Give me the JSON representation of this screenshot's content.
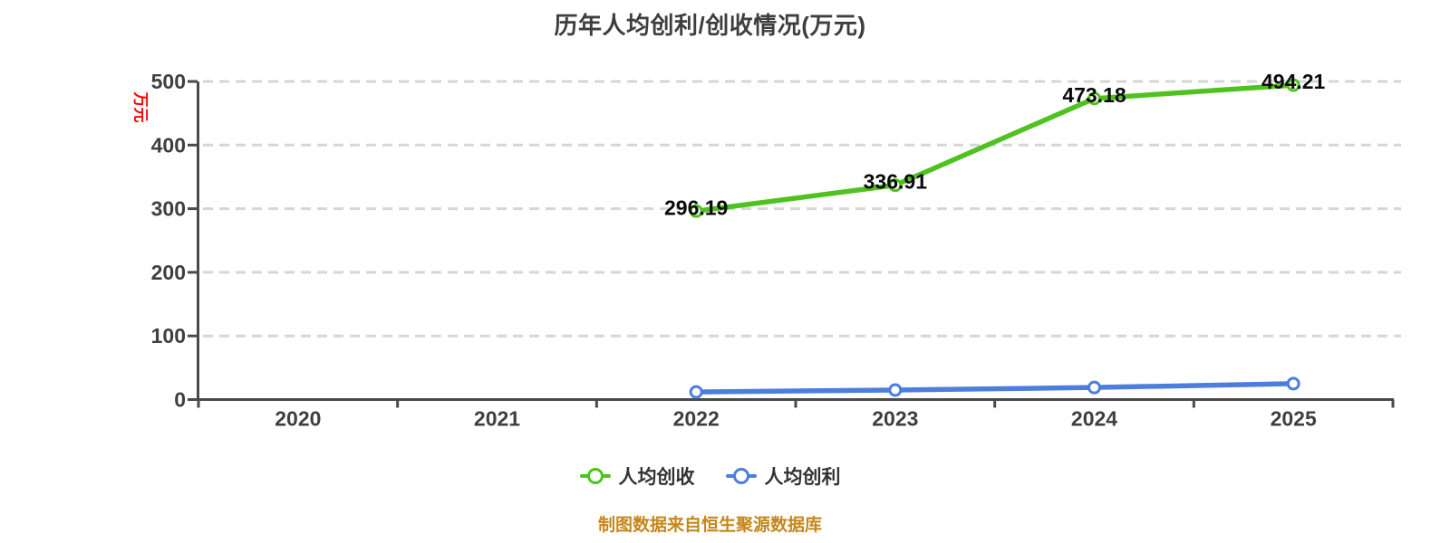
{
  "title": "历年人均创利/创收情况(万元)",
  "colors": {
    "title": "#3e3e3e",
    "axis_line": "#4a4a4a",
    "tick_label": "#3f3f3f",
    "gridline": "#d6d6d6",
    "data_label": "#0a0a0a",
    "y_axis_name": "#ff0000",
    "revenue_green": "#50c220",
    "profit_blue": "#4d7ede",
    "footer": "#c5871c"
  },
  "chart_data": {
    "type": "line",
    "title": "历年人均创利/创收情况(万元)",
    "categories": [
      "2020",
      "2021",
      "2022",
      "2023",
      "2024",
      "2025"
    ],
    "xlabel": "",
    "ylabel": "万元",
    "y_axis": {
      "label": "万元",
      "ticks": [
        0,
        100,
        200,
        300,
        400,
        500
      ],
      "range": [
        0,
        500
      ]
    },
    "grid": "horizontal-dashed",
    "legend_position": "bottom",
    "series": [
      {
        "name": "人均创收",
        "color": "#50c220",
        "start_index": 2,
        "x": [
          "2022",
          "2023",
          "2024",
          "2025"
        ],
        "values": [
          296.19,
          336.91,
          473.18,
          494.21
        ],
        "data_labels": [
          "296.19",
          "336.91",
          "473.18",
          "494.21"
        ],
        "show_labels": true,
        "estimated": false
      },
      {
        "name": "人均创利",
        "color": "#4d7ede",
        "start_index": 2,
        "x": [
          "2022",
          "2023",
          "2024",
          "2025"
        ],
        "values": [
          12,
          15,
          19,
          25
        ],
        "show_labels": false,
        "estimated": true
      }
    ]
  },
  "legend": {
    "items": [
      {
        "label": "人均创收"
      },
      {
        "label": "人均创利"
      }
    ]
  },
  "footer": {
    "text": "制图数据来自恒生聚源数据库"
  }
}
